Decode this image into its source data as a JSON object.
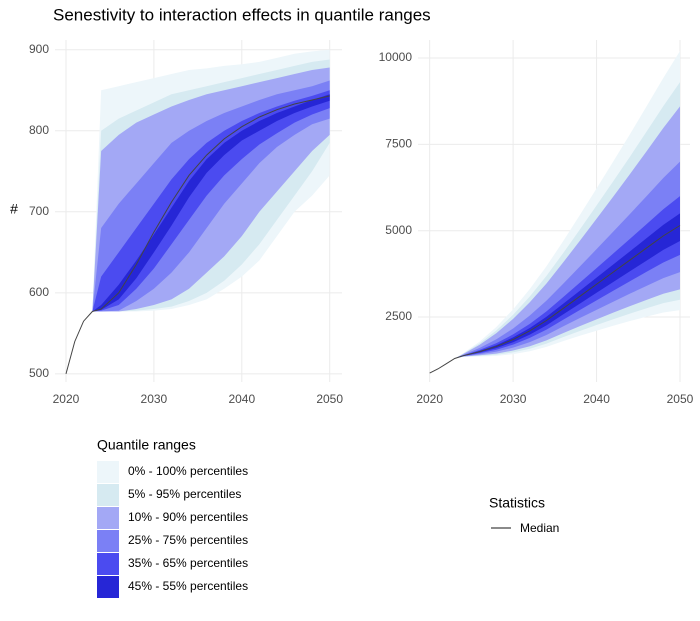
{
  "chart_data": [
    {
      "type": "fan",
      "title": "Senestivity to interaction effects in quantile ranges",
      "ylabel": "#",
      "x": [
        2020,
        2021,
        2022,
        2023,
        2024,
        2026,
        2028,
        2030,
        2032,
        2034,
        2036,
        2038,
        2040,
        2042,
        2044,
        2046,
        2048,
        2050
      ],
      "xlim": [
        2018.75,
        2051.4
      ],
      "xticks": [
        2020,
        2030,
        2040,
        2050
      ],
      "ylim": [
        490,
        912
      ],
      "yticks": [
        500,
        600,
        700,
        800,
        900
      ],
      "grid": true,
      "legend_title": "Quantile ranges",
      "series": [
        {
          "name": "0% - 100% percentiles",
          "color": "#edf6fa",
          "lower": [
            null,
            null,
            null,
            577,
            577,
            577,
            577,
            578,
            580,
            585,
            592,
            605,
            620,
            640,
            670,
            700,
            720,
            745
          ],
          "upper": [
            null,
            null,
            null,
            577,
            850,
            855,
            860,
            865,
            870,
            875,
            877,
            880,
            882,
            885,
            890,
            895,
            898,
            900
          ]
        },
        {
          "name": "5% - 95% percentiles",
          "color": "#d6eaf1",
          "lower": [
            null,
            null,
            null,
            577,
            577,
            577,
            578,
            580,
            583,
            590,
            600,
            615,
            635,
            660,
            690,
            720,
            750,
            785
          ],
          "upper": [
            null,
            null,
            null,
            577,
            800,
            815,
            825,
            835,
            845,
            850,
            855,
            860,
            865,
            870,
            875,
            880,
            885,
            888
          ]
        },
        {
          "name": "10% - 90% percentiles",
          "color": "#a3a8f5",
          "lower": [
            null,
            null,
            null,
            577,
            577,
            577,
            580,
            585,
            592,
            605,
            625,
            645,
            670,
            700,
            725,
            750,
            775,
            795
          ],
          "upper": [
            null,
            null,
            null,
            577,
            775,
            795,
            810,
            820,
            830,
            838,
            845,
            850,
            855,
            860,
            865,
            870,
            875,
            878
          ]
        },
        {
          "name": "25% - 75% percentiles",
          "color": "#7b80f5",
          "lower": [
            null,
            null,
            null,
            577,
            577,
            578,
            590,
            605,
            625,
            650,
            680,
            710,
            735,
            760,
            780,
            795,
            808,
            815
          ],
          "upper": [
            null,
            null,
            null,
            577,
            680,
            710,
            735,
            760,
            785,
            800,
            812,
            822,
            830,
            838,
            845,
            850,
            855,
            862
          ]
        },
        {
          "name": "35% - 65% percentiles",
          "color": "#4b4bf0",
          "lower": [
            null,
            null,
            null,
            577,
            578,
            585,
            605,
            630,
            660,
            690,
            720,
            745,
            765,
            783,
            797,
            810,
            820,
            828
          ],
          "upper": [
            null,
            null,
            null,
            577,
            620,
            650,
            680,
            710,
            740,
            765,
            785,
            800,
            812,
            822,
            830,
            837,
            843,
            850
          ]
        },
        {
          "name": "45% - 55% percentiles",
          "color": "#2626d6",
          "lower": [
            null,
            null,
            null,
            577,
            579,
            592,
            618,
            650,
            683,
            718,
            748,
            770,
            788,
            800,
            812,
            822,
            830,
            837
          ],
          "upper": [
            null,
            null,
            null,
            577,
            585,
            610,
            640,
            672,
            705,
            738,
            765,
            785,
            800,
            812,
            822,
            830,
            838,
            845
          ]
        }
      ],
      "stats_title": "Statistics",
      "median": {
        "name": "Median",
        "color": "#444444",
        "values": [
          500,
          540,
          565,
          577,
          580,
          600,
          635,
          675,
          712,
          745,
          770,
          790,
          805,
          817,
          826,
          833,
          838,
          843
        ]
      }
    },
    {
      "type": "fan",
      "x": [
        2020,
        2021,
        2022,
        2023,
        2024,
        2026,
        2028,
        2030,
        2032,
        2034,
        2036,
        2038,
        2040,
        2042,
        2044,
        2046,
        2048,
        2050
      ],
      "xlim": [
        2018.6,
        2051.2
      ],
      "xticks": [
        2020,
        2030,
        2040,
        2050
      ],
      "ylim": [
        620,
        10520
      ],
      "yticks": [
        2500,
        5000,
        7500,
        10000
      ],
      "grid": true,
      "series": [
        {
          "color": "#edf6fa",
          "lower": [
            null,
            null,
            null,
            1300,
            1346,
            1358,
            1376,
            1426,
            1512,
            1638,
            1804,
            1958,
            2105,
            2247,
            2384,
            2511,
            2633,
            2700
          ],
          "upper": [
            null,
            null,
            null,
            1300,
            1451,
            1793,
            2216,
            2724,
            3312,
            3971,
            4699,
            5453,
            6222,
            7002,
            7791,
            8601,
            9420,
            10200
          ]
        },
        {
          "color": "#d6eaf1",
          "lower": [
            null,
            null,
            null,
            1300,
            1350,
            1375,
            1409,
            1478,
            1584,
            1731,
            1920,
            2098,
            2270,
            2437,
            2600,
            2754,
            2904,
            3000
          ],
          "upper": [
            null,
            null,
            null,
            1300,
            1438,
            1741,
            2115,
            2568,
            3096,
            3691,
            4352,
            5034,
            5728,
            6431,
            7142,
            7870,
            8606,
            9300
          ]
        },
        {
          "color": "#a3a8f5",
          "lower": [
            null,
            null,
            null,
            1300,
            1354,
            1393,
            1443,
            1530,
            1656,
            1825,
            2036,
            2238,
            2434,
            2627,
            2816,
            2998,
            3176,
            3300
          ],
          "upper": [
            null,
            null,
            null,
            1300,
            1428,
            1700,
            2036,
            2447,
            2928,
            3473,
            4082,
            4708,
            5344,
            5987,
            6637,
            7301,
            7972,
            8600
          ]
        },
        {
          "color": "#7b80f5",
          "lower": [
            null,
            null,
            null,
            1300,
            1361,
            1422,
            1499,
            1616,
            1776,
            1980,
            2229,
            2471,
            2709,
            2944,
            3177,
            3404,
            3628,
            3800
          ],
          "upper": [
            null,
            null,
            null,
            1300,
            1406,
            1607,
            1857,
            2170,
            2544,
            2975,
            3464,
            3962,
            4466,
            4973,
            5484,
            6002,
            6524,
            7000
          ]
        },
        {
          "color": "#4b4bf0",
          "lower": [
            null,
            null,
            null,
            1300,
            1368,
            1451,
            1555,
            1703,
            1896,
            2136,
            2422,
            2704,
            2983,
            3261,
            3537,
            3810,
            4081,
            4300
          ],
          "upper": [
            null,
            null,
            null,
            1300,
            1392,
            1549,
            1745,
            1997,
            2304,
            2664,
            3078,
            3496,
            3917,
            4339,
            4763,
            5190,
            5619,
            6000
          ]
        },
        {
          "color": "#2626d6",
          "lower": [
            null,
            null,
            null,
            1300,
            1374,
            1474,
            1600,
            1772,
            1992,
            2260,
            2576,
            2890,
            3203,
            3515,
            3826,
            4135,
            4443,
            4700
          ],
          "upper": [
            null,
            null,
            null,
            1300,
            1385,
            1520,
            1689,
            1911,
            2184,
            2509,
            2885,
            3263,
            3642,
            4022,
            4402,
            4784,
            5167,
            5500
          ]
        }
      ],
      "median": {
        "color": "#444444",
        "values": [
          880,
          1000,
          1150,
          1300,
          1380,
          1500,
          1650,
          1850,
          2100,
          2400,
          2750,
          3100,
          3450,
          3800,
          4150,
          4500,
          4850,
          5150
        ]
      }
    }
  ]
}
